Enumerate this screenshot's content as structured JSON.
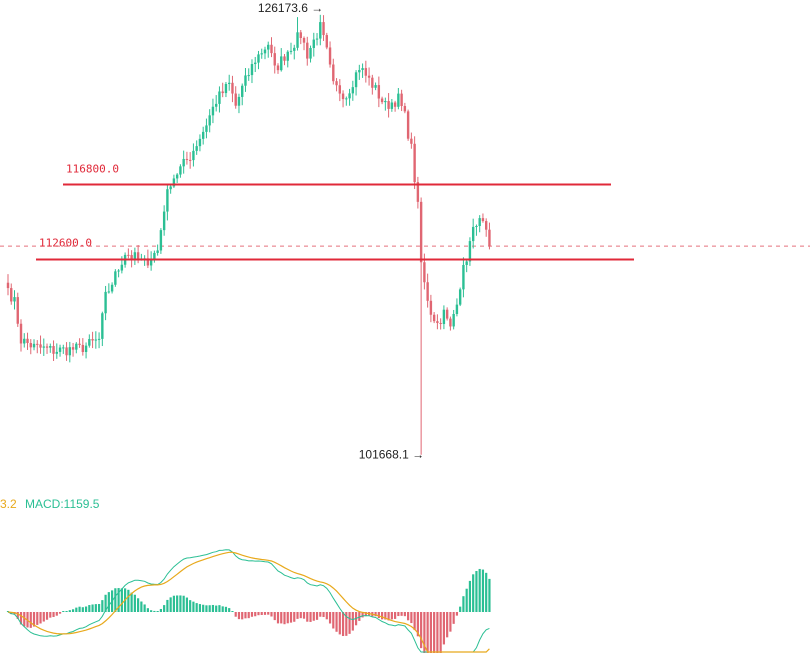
{
  "chart_data": [
    {
      "type": "candlestick",
      "title": "",
      "price_range": [
        100500,
        127500
      ],
      "levels": [
        {
          "label": "116800.0",
          "value": 116800
        },
        {
          "label": "112600.0",
          "value": 112600
        }
      ],
      "current_price": 113350,
      "annotations": [
        {
          "label": "126173.6 →",
          "value": 126173.6,
          "kind": "high"
        },
        {
          "label": "101668.1 →",
          "value": 101668.1,
          "kind": "low"
        }
      ],
      "close_waypoints": [
        [
          0,
          111000
        ],
        [
          2,
          110200
        ],
        [
          4,
          108100
        ],
        [
          8,
          107700
        ],
        [
          14,
          107500
        ],
        [
          22,
          107600
        ],
        [
          28,
          108100
        ],
        [
          30,
          110500
        ],
        [
          34,
          112100
        ],
        [
          36,
          113000
        ],
        [
          38,
          112800
        ],
        [
          42,
          112400
        ],
        [
          46,
          113100
        ],
        [
          48,
          115500
        ],
        [
          50,
          117000
        ],
        [
          56,
          118400
        ],
        [
          60,
          119800
        ],
        [
          64,
          121500
        ],
        [
          68,
          122400
        ],
        [
          70,
          121200
        ],
        [
          72,
          122200
        ],
        [
          76,
          123800
        ],
        [
          80,
          124700
        ],
        [
          82,
          123200
        ],
        [
          86,
          124300
        ],
        [
          90,
          125200
        ],
        [
          92,
          124100
        ],
        [
          96,
          125600
        ],
        [
          98,
          124200
        ],
        [
          100,
          122300
        ],
        [
          104,
          121800
        ],
        [
          108,
          123400
        ],
        [
          112,
          122400
        ],
        [
          116,
          121200
        ],
        [
          120,
          121600
        ],
        [
          122,
          120600
        ],
        [
          124,
          118800
        ],
        [
          126,
          115500
        ],
        [
          127,
          112400
        ],
        [
          128,
          111200
        ],
        [
          130,
          109700
        ],
        [
          132,
          109000
        ],
        [
          134,
          109600
        ],
        [
          136,
          108700
        ],
        [
          138,
          110400
        ],
        [
          140,
          112000
        ],
        [
          142,
          113500
        ],
        [
          144,
          114800
        ],
        [
          146,
          114500
        ],
        [
          148,
          113350
        ]
      ]
    },
    {
      "type": "macd",
      "legend": [
        {
          "label": "3.2",
          "color": "#e8a91c"
        },
        {
          "label": "MACD:1159.5",
          "color": "#2bbf94"
        }
      ],
      "series_colors": {
        "dif": "#2bbf94",
        "dea": "#e8a91c",
        "positive": "#2bbf94",
        "negative": "#e06672"
      }
    }
  ]
}
